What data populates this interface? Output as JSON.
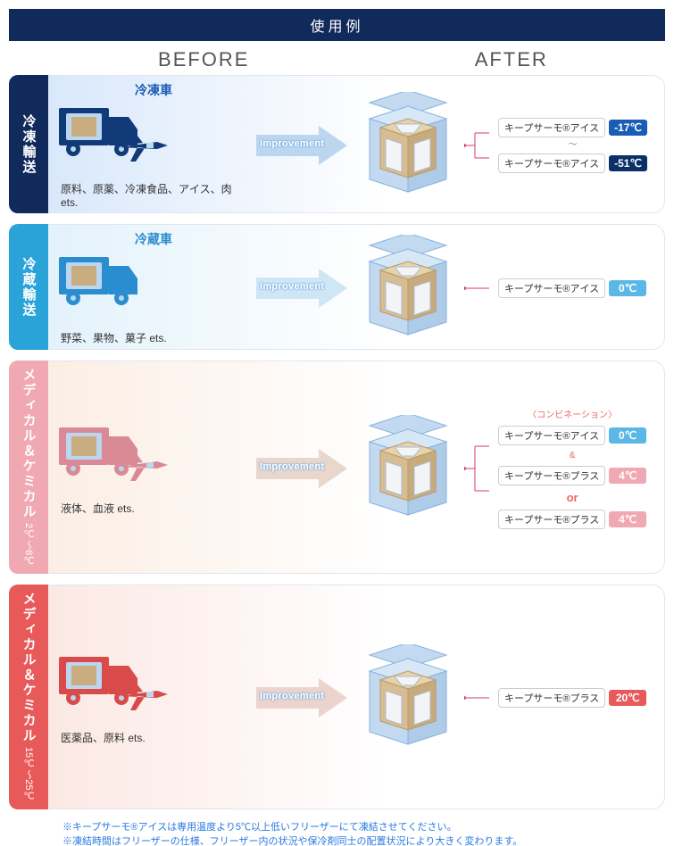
{
  "title": "使用例",
  "headers": {
    "before": "BEFORE",
    "after": "AFTER"
  },
  "arrow_text": "Improvement",
  "rows": [
    {
      "id": "frozen",
      "side_label": "冷凍輸送",
      "side_range": "",
      "side_color": "#102a5c",
      "side_text_color": "#ffffff",
      "body_gradient_from": "#d9e8fb",
      "body_gradient_to": "#ffffff",
      "before_head": "冷凍車",
      "before_head_color": "#1a5db5",
      "icon_color": "#113a78",
      "show_plane": true,
      "desc": "原料、原薬、冷凍食品、アイス、肉 ets.",
      "arrow_fill": "#bcd6ef",
      "labels": [
        {
          "text": "キープサーモ®アイス",
          "temp": "-17℃",
          "temp_bg": "#1a5db5"
        },
        {
          "tilde": true
        },
        {
          "text": "キープサーモ®アイス",
          "temp": "-51℃",
          "temp_bg": "#0b2f66"
        }
      ]
    },
    {
      "id": "chilled",
      "side_label": "冷蔵輸送",
      "side_range": "",
      "side_color": "#2aa3d9",
      "side_text_color": "#ffffff",
      "body_gradient_from": "#e3f2fb",
      "body_gradient_to": "#ffffff",
      "before_head": "冷蔵車",
      "before_head_color": "#2a8dcf",
      "icon_color": "#2a8dcf",
      "show_plane": false,
      "desc": "野菜、果物、菓子 ets.",
      "arrow_fill": "#cfe6f5",
      "labels": [
        {
          "text": "キープサーモ®アイス",
          "temp": "0℃",
          "temp_bg": "#5bb7e6"
        }
      ]
    },
    {
      "id": "medchem28",
      "side_label": "メディカル＆ケミカル",
      "side_range": "2℃〜8℃",
      "side_color": "#f0a8b2",
      "side_text_color": "#ffffff",
      "body_gradient_from": "#fbeee4",
      "body_gradient_to": "#ffffff",
      "before_head": "",
      "before_head_color": "",
      "icon_color": "#d98a94",
      "show_plane": true,
      "desc": "液体、血液 ets.",
      "arrow_fill": "#e9d6cc",
      "combo_note": "〈コンビネーション〉",
      "labels": [
        {
          "text": "キープサーモ®アイス",
          "temp": "0℃",
          "temp_bg": "#5bb7e6",
          "amp_after": true
        },
        {
          "text": "キープサーモ®プラス",
          "temp": "4℃",
          "temp_bg": "#f0a8b2"
        },
        {
          "or": true
        },
        {
          "text": "キープサーモ®プラス",
          "temp": "4℃",
          "temp_bg": "#f0a8b2"
        }
      ]
    },
    {
      "id": "medchem1525",
      "side_label": "メディカル＆ケミカル",
      "side_range": "15℃〜25℃",
      "side_color": "#e85a5a",
      "side_text_color": "#ffffff",
      "body_gradient_from": "#fbe8e3",
      "body_gradient_to": "#ffffff",
      "before_head": "",
      "before_head_color": "",
      "icon_color": "#d94a4a",
      "show_plane": true,
      "desc": "医薬品、原料 ets.",
      "arrow_fill": "#ecd4ce",
      "labels": [
        {
          "text": "キープサーモ®プラス",
          "temp": "20℃",
          "temp_bg": "#e85a5a"
        }
      ]
    }
  ],
  "footer": [
    "※キープサーモ®アイスは専用温度より5℃以上低いフリーザーにて凍結させてください。",
    "※凍結時間はフリーザーの仕様、フリーザー内の状況や保冷剤同士の配置状況により大きく変わります。"
  ],
  "iso_box": {
    "outer_fill": "#c3d9f0",
    "outer_stroke": "#88b3de",
    "carton_fill": "#d6bd93",
    "carton_stroke": "#b89a6b",
    "pack_fill": "#f2f4f7",
    "pack_stroke": "#b0bccb"
  },
  "callout_color": "#d63a7a"
}
